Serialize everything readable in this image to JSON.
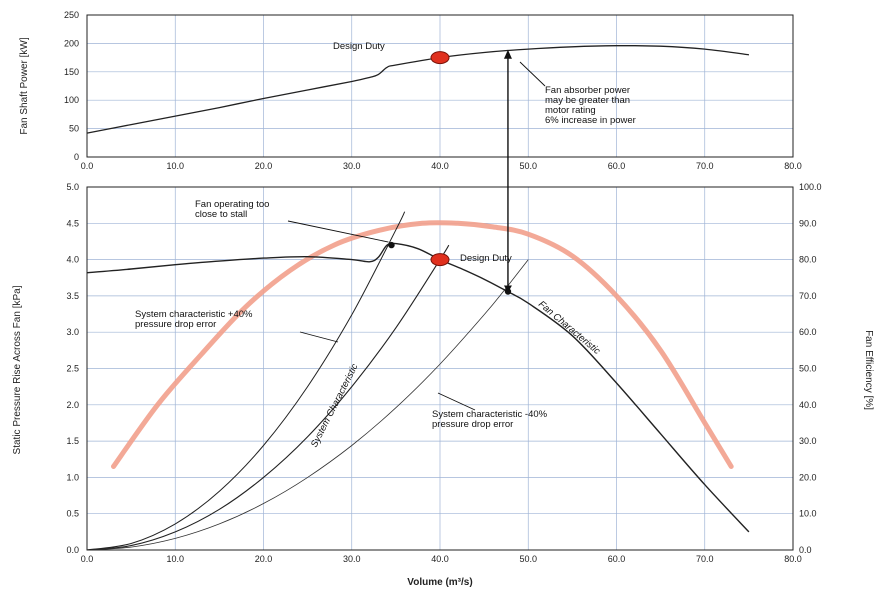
{
  "chart_data": [
    {
      "type": "line",
      "ylabel": "Fan Shaft Power [kW]",
      "xlim": [
        0,
        80
      ],
      "ylim": [
        0,
        250
      ],
      "x_ticks": [
        "0.0",
        "10.0",
        "20.0",
        "30.0",
        "40.0",
        "50.0",
        "60.0",
        "70.0",
        "80.0"
      ],
      "y_ticks": [
        "0",
        "50",
        "100",
        "150",
        "200",
        "250"
      ],
      "series": [
        {
          "x": [
            0,
            5,
            10,
            15,
            20,
            25,
            30,
            32,
            33,
            34,
            35,
            40,
            45,
            50,
            55,
            60,
            65,
            70,
            75
          ],
          "y": [
            42,
            57,
            72,
            87,
            103,
            118,
            133,
            140,
            145,
            158,
            162,
            175,
            184,
            190,
            194,
            196,
            195,
            190,
            180
          ]
        }
      ],
      "design_point": {
        "x": 40,
        "y": 175
      },
      "annotations": {
        "design": "Design Duty",
        "note_lines": [
          "Fan absorber power",
          "may be greater than",
          "motor rating",
          "6% increase in power"
        ]
      }
    },
    {
      "type": "line",
      "xlabel": "Volume (m³/s)",
      "ylabel": "Static Pressure Rise Across Fan [kPa]",
      "y2label": "Fan Efficiency [%]",
      "xlim": [
        0,
        80
      ],
      "ylim": [
        0,
        5
      ],
      "y2lim": [
        0,
        100
      ],
      "x_ticks": [
        "0.0",
        "10.0",
        "20.0",
        "30.0",
        "40.0",
        "50.0",
        "60.0",
        "70.0",
        "80.0"
      ],
      "y_ticks": [
        "0.0",
        "0.5",
        "1.0",
        "1.5",
        "2.0",
        "2.5",
        "3.0",
        "3.5",
        "4.0",
        "4.5",
        "5.0"
      ],
      "y2_ticks": [
        "0.0",
        "10.0",
        "20.0",
        "30.0",
        "40.0",
        "50.0",
        "60.0",
        "70.0",
        "80.0",
        "90.0",
        "100.0"
      ],
      "fan_characteristic": {
        "x": [
          0,
          5,
          10,
          15,
          20,
          25,
          30,
          32,
          33,
          34,
          35,
          37.5,
          40,
          42.5,
          45,
          47.5,
          50,
          55,
          60,
          65,
          70,
          75
        ],
        "y": [
          3.82,
          3.87,
          3.93,
          3.98,
          4.02,
          4.04,
          4.0,
          3.97,
          4.03,
          4.2,
          4.22,
          4.15,
          4.0,
          3.87,
          3.73,
          3.57,
          3.4,
          2.95,
          2.3,
          1.6,
          0.9,
          0.25
        ]
      },
      "system_plus": {
        "x": [
          0,
          5,
          10,
          15,
          20,
          25,
          30,
          35,
          36
        ],
        "y": [
          0,
          0.09,
          0.36,
          0.81,
          1.44,
          2.25,
          3.24,
          4.41,
          4.66
        ]
      },
      "system_nominal": {
        "x": [
          0,
          5,
          10,
          15,
          20,
          25,
          30,
          35,
          40,
          41
        ],
        "y": [
          0,
          0.06,
          0.25,
          0.56,
          1.0,
          1.56,
          2.25,
          3.06,
          4.0,
          4.2
        ]
      },
      "system_minus": {
        "x": [
          0,
          5,
          10,
          15,
          20,
          25,
          30,
          35,
          40,
          45,
          47.5,
          50
        ],
        "y": [
          0,
          0.04,
          0.16,
          0.36,
          0.64,
          1.0,
          1.44,
          1.96,
          2.56,
          3.24,
          3.61,
          4.0
        ]
      },
      "efficiency": {
        "x": [
          3,
          8,
          13,
          18,
          23,
          28,
          33,
          38,
          42,
          46,
          50,
          55,
          60,
          65,
          70,
          73
        ],
        "y": [
          23,
          40,
          54,
          67,
          77,
          84,
          88,
          90,
          90,
          89,
          87,
          81,
          70,
          55,
          35,
          23
        ]
      },
      "design_point": {
        "x": 40,
        "y": 4.0
      },
      "stall_point": {
        "x": 34.5,
        "y": 4.2
      },
      "minus_point": {
        "x": 47.7,
        "y": 3.56
      },
      "annotations": {
        "stall_lines": [
          "Fan operating too",
          "close to stall"
        ],
        "design": "Design Duty",
        "fan_char": "Fan Characteristic",
        "sys_char": "System Characteristic",
        "plus_lines": [
          "System characteristic +40%",
          "pressure drop error"
        ],
        "minus_lines": [
          "System characteristic -40%",
          "pressure drop error"
        ]
      },
      "colors": {
        "efficiency": "#f2a08c",
        "design_point": "#e0301e",
        "grid": "#9fb4d6"
      }
    }
  ]
}
